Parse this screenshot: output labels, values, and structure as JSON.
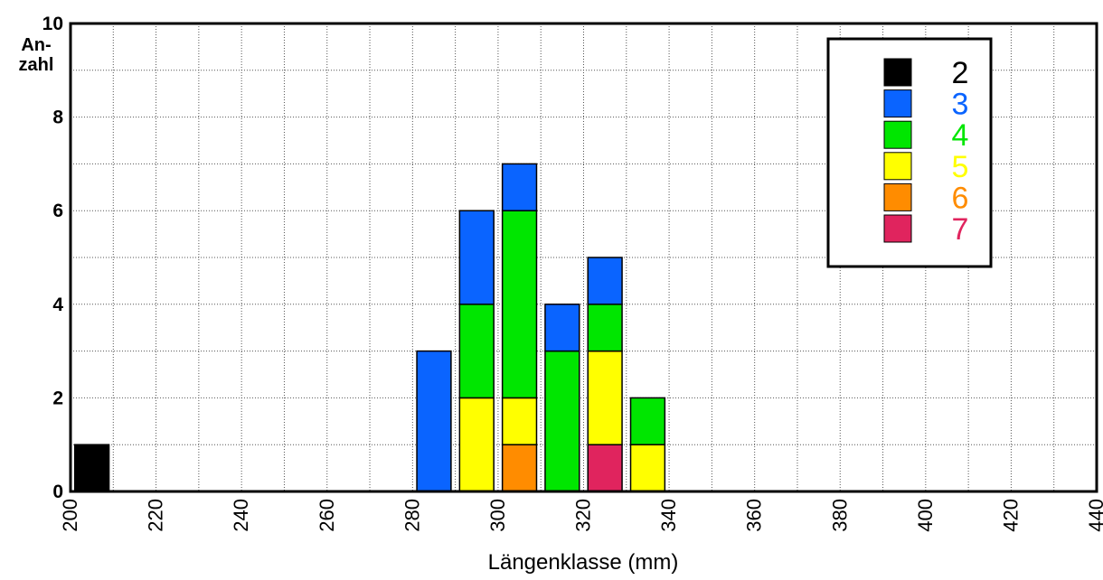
{
  "chart_data": {
    "type": "histogram",
    "xlabel": "Längenklasse (mm)",
    "ylabel": "An-\nzahl",
    "bins": [
      200,
      210,
      220,
      230,
      240,
      250,
      260,
      270,
      280,
      290,
      300,
      310,
      320,
      330,
      340,
      350,
      360,
      370,
      380,
      390,
      400,
      410,
      420,
      430,
      440
    ],
    "series": [
      {
        "name": "2",
        "color": "#000000",
        "values": [
          1,
          0,
          0,
          0,
          0,
          0,
          0,
          0,
          0,
          0,
          0,
          0,
          0,
          0,
          0,
          0,
          0,
          0,
          0,
          0,
          0,
          0,
          0,
          0
        ]
      },
      {
        "name": "3",
        "color": "#0a64ff",
        "values": [
          0,
          0,
          0,
          0,
          0,
          0,
          0,
          0,
          3,
          2,
          1,
          1,
          1,
          0,
          0,
          0,
          0,
          0,
          0,
          0,
          0,
          0,
          0,
          0
        ]
      },
      {
        "name": "4",
        "color": "#00e600",
        "values": [
          0,
          0,
          0,
          0,
          0,
          0,
          0,
          0,
          0,
          2,
          4,
          3,
          1,
          1,
          0,
          0,
          0,
          0,
          0,
          0,
          0,
          0,
          0,
          0
        ]
      },
      {
        "name": "5",
        "color": "#ffff00",
        "values": [
          0,
          0,
          0,
          0,
          0,
          0,
          0,
          0,
          0,
          2,
          1,
          0,
          2,
          1,
          0,
          0,
          0,
          0,
          0,
          0,
          0,
          0,
          0,
          0
        ]
      },
      {
        "name": "6",
        "color": "#ff8c00",
        "values": [
          0,
          0,
          0,
          0,
          0,
          0,
          0,
          0,
          0,
          0,
          1,
          0,
          0,
          0,
          0,
          0,
          0,
          0,
          0,
          0,
          0,
          0,
          0,
          0
        ]
      },
      {
        "name": "7",
        "color": "#e0245e",
        "values": [
          0,
          0,
          0,
          0,
          0,
          0,
          0,
          0,
          0,
          0,
          0,
          0,
          1,
          0,
          0,
          0,
          0,
          0,
          0,
          0,
          0,
          0,
          0,
          0
        ]
      }
    ],
    "stacked": true,
    "xlim": [
      200,
      440
    ],
    "xticks": [
      200,
      220,
      240,
      260,
      280,
      300,
      320,
      340,
      360,
      380,
      400,
      420,
      440
    ],
    "ylim": [
      0,
      10
    ],
    "yticks": [
      0,
      2,
      4,
      6,
      8,
      10
    ],
    "grid": true,
    "legend": "upper right"
  }
}
